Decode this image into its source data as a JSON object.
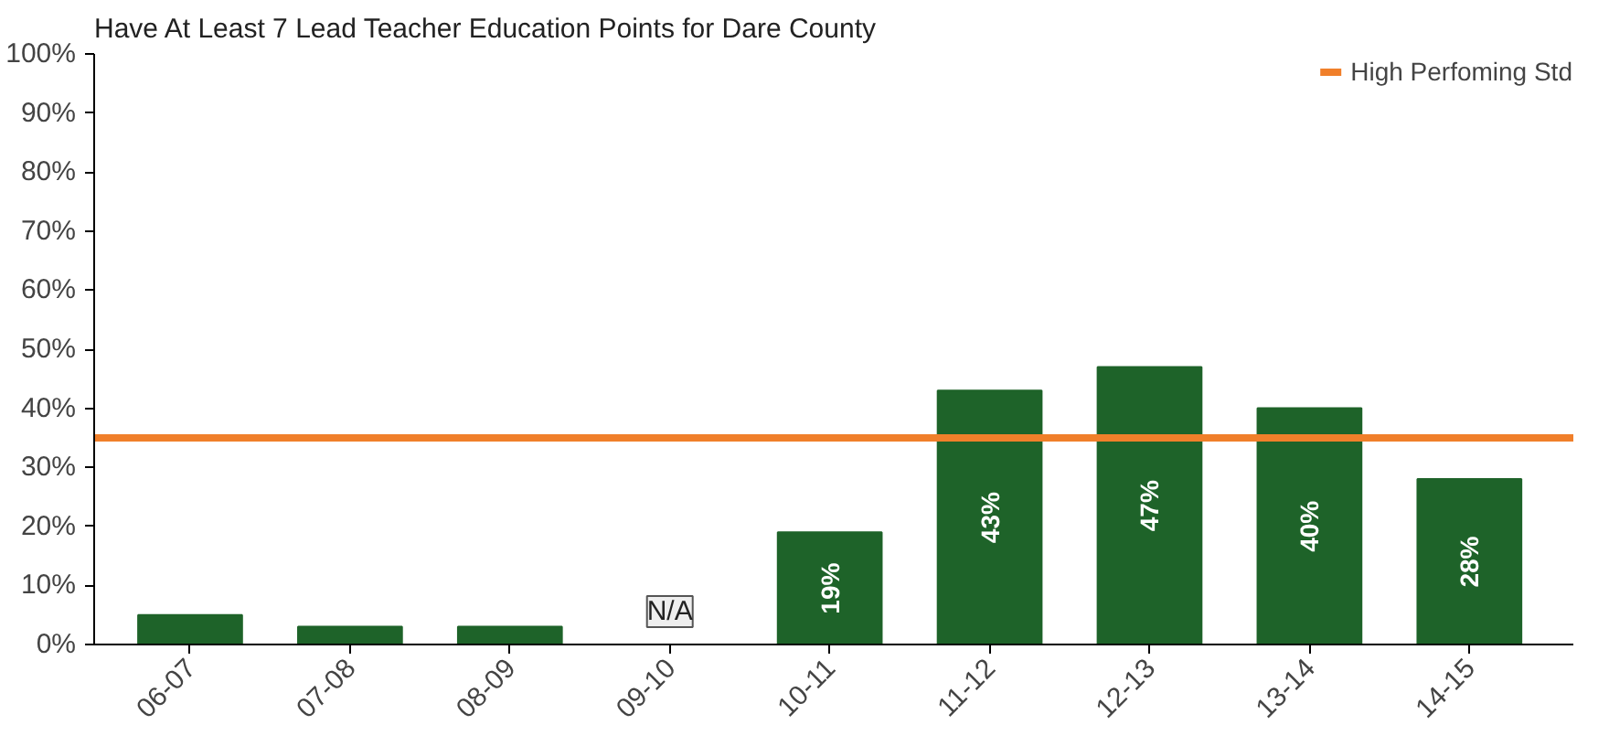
{
  "chart_data": {
    "type": "bar",
    "title": "Have At Least 7 Lead Teacher Education Points for Dare County",
    "categories": [
      "06-07",
      "07-08",
      "08-09",
      "09-10",
      "10-11",
      "11-12",
      "12-13",
      "13-14",
      "14-15"
    ],
    "values": [
      5,
      3,
      3,
      null,
      19,
      43,
      47,
      40,
      28
    ],
    "value_labels": [
      null,
      null,
      null,
      "N/A",
      "19%",
      "43%",
      "47%",
      "40%",
      "28%"
    ],
    "color": "#1e6329",
    "ylim": [
      0,
      100
    ],
    "yticks": [
      {
        "value": 0,
        "label": "0%"
      },
      {
        "value": 10,
        "label": "10%"
      },
      {
        "value": 20,
        "label": "20%"
      },
      {
        "value": 30,
        "label": "30%"
      },
      {
        "value": 40,
        "label": "40%"
      },
      {
        "value": 50,
        "label": "50%"
      },
      {
        "value": 60,
        "label": "60%"
      },
      {
        "value": 70,
        "label": "70%"
      },
      {
        "value": 80,
        "label": "80%"
      },
      {
        "value": 90,
        "label": "90%"
      },
      {
        "value": 100,
        "label": "100%"
      }
    ],
    "ref_lines": [
      {
        "axis": "y",
        "value": 35,
        "label": "High Perfoming Std",
        "color": "#f07f2a"
      }
    ],
    "legend": "top right",
    "grid": false
  }
}
